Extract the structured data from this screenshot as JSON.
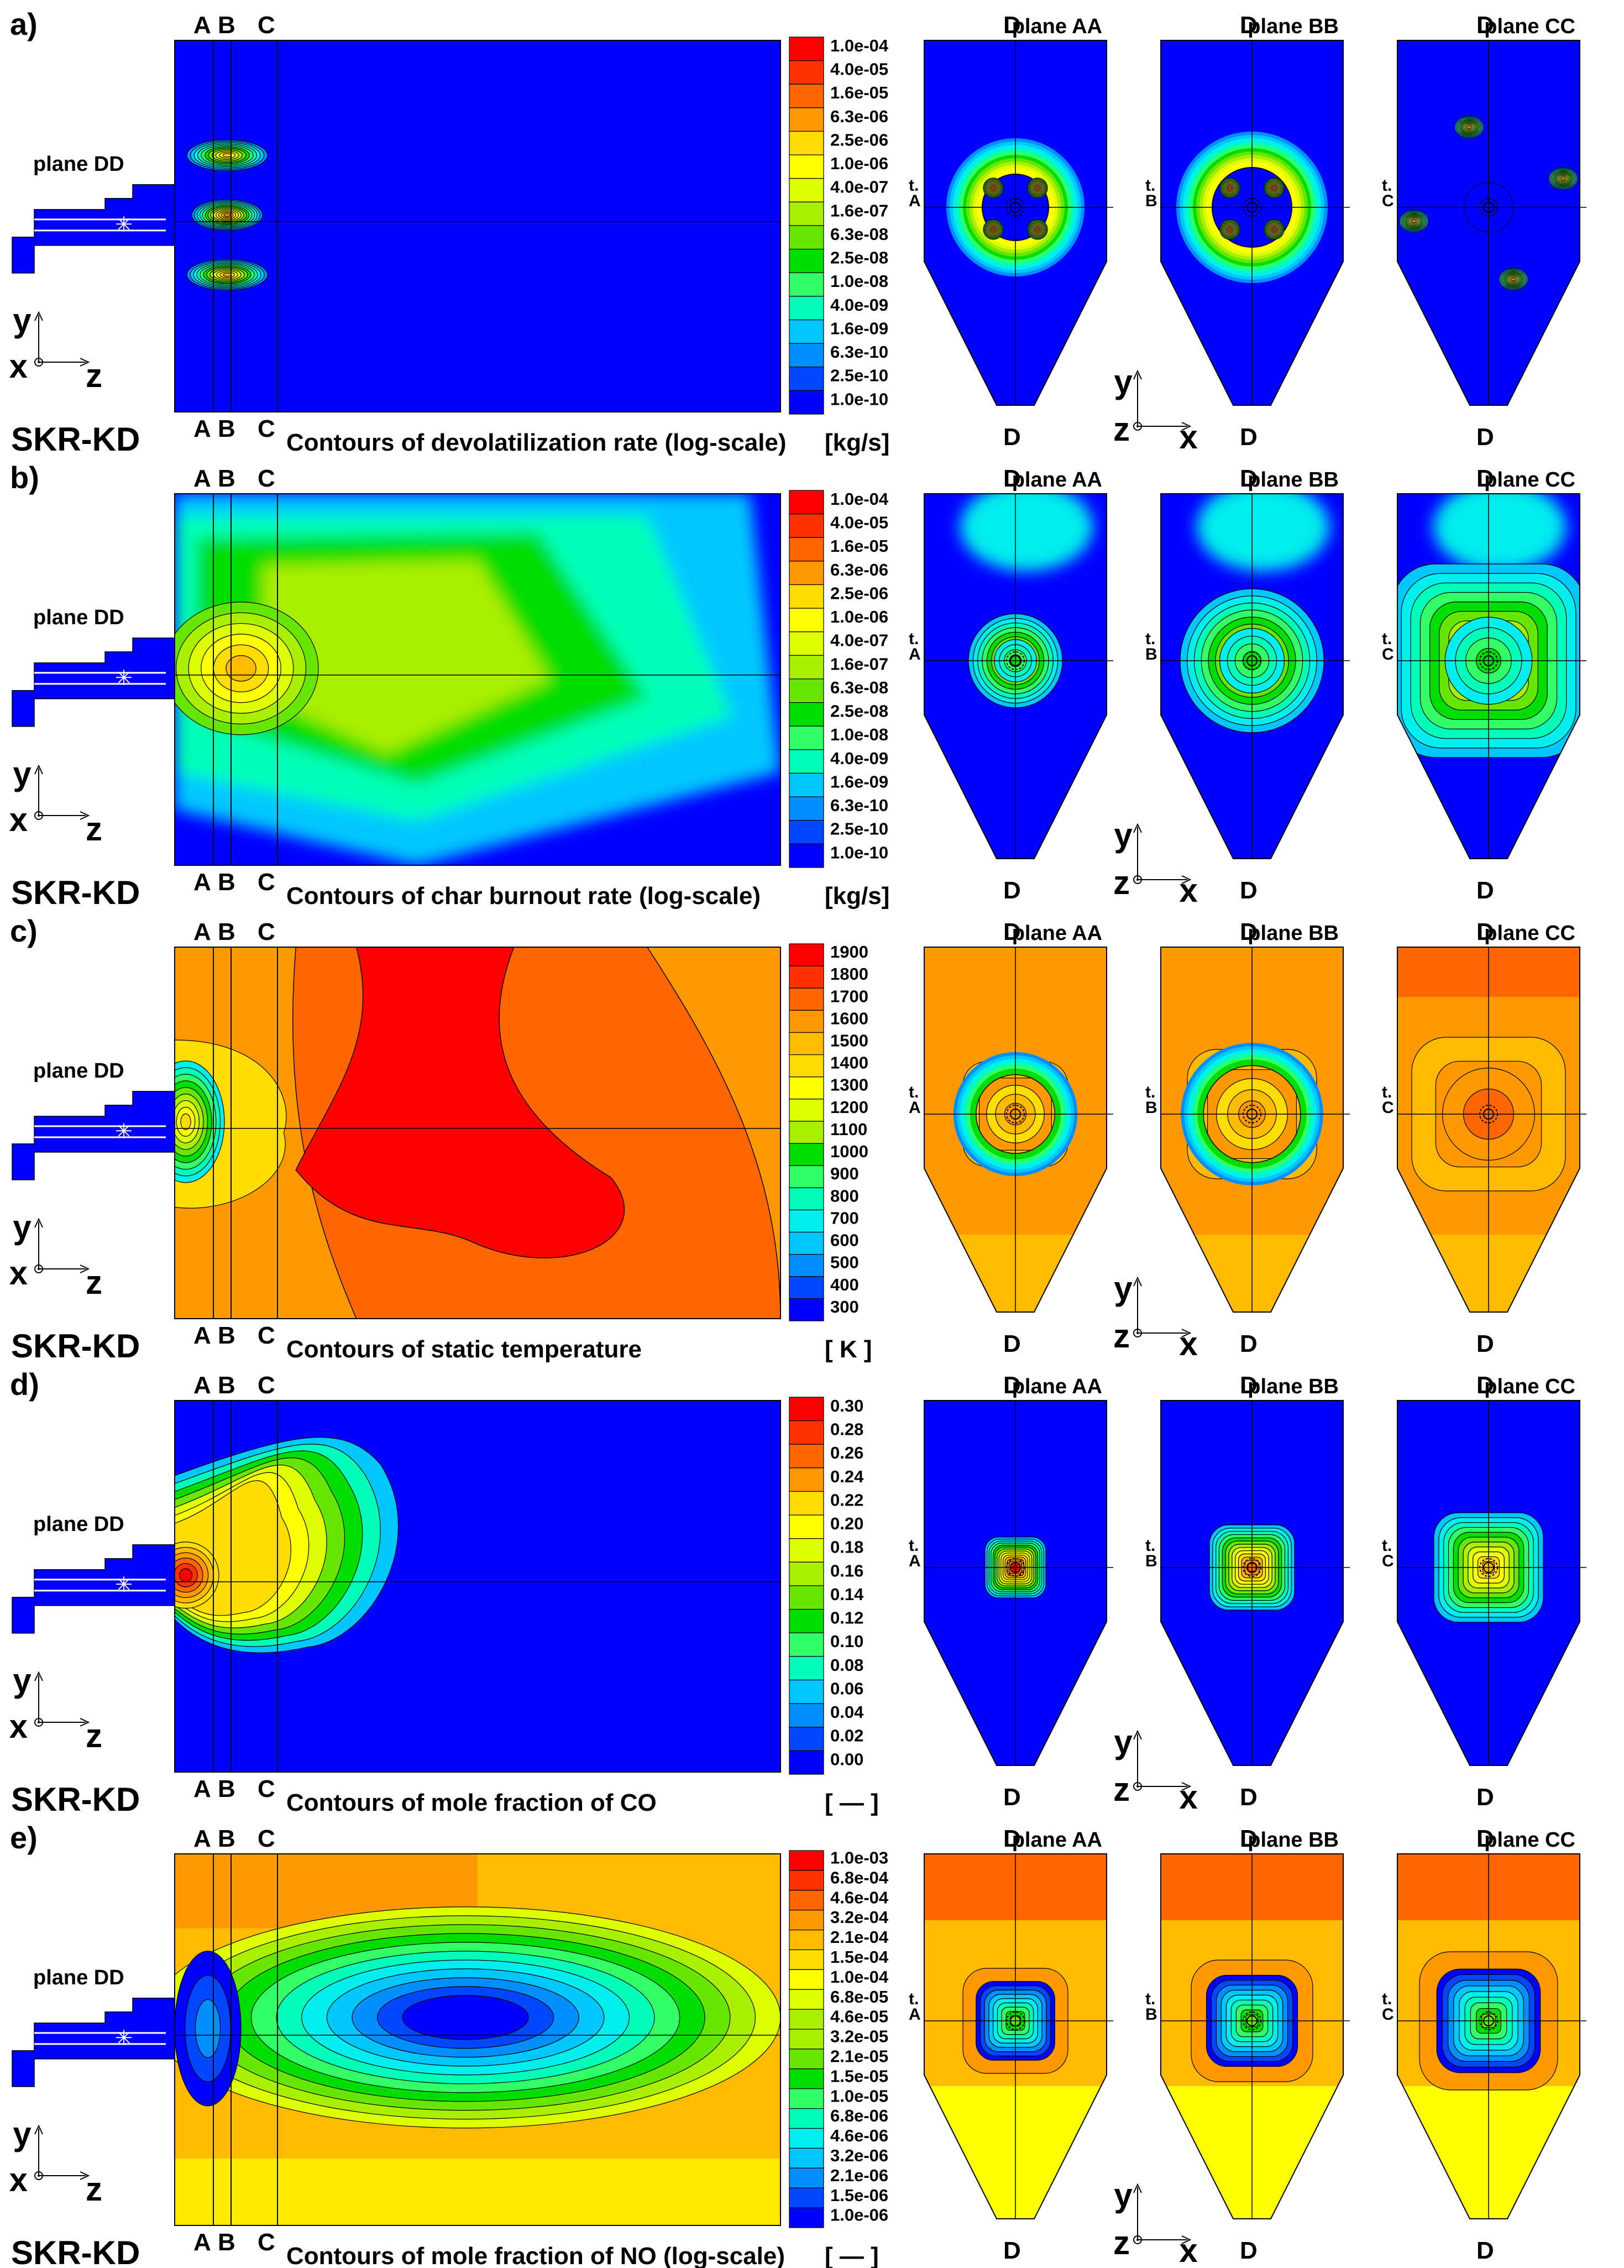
{
  "figure": {
    "model_name": "SKR-KD",
    "burner_plane_label": "plane DD",
    "side_section_marks": [
      "A",
      "B",
      "C"
    ],
    "slice_top_mark": "D",
    "slice_bottom_mark": "D",
    "slice_plane_labels": [
      "plane AA",
      "plane BB",
      "plane CC"
    ],
    "slice_line_marks": [
      "A",
      "B",
      "C"
    ],
    "slice_line_prefix": "t.",
    "axes_side": {
      "up": "y",
      "out": "x",
      "right": "z"
    },
    "axes_slice": {
      "up": "y",
      "out": "z",
      "right": "x"
    }
  },
  "colors": {
    "scale": [
      "#0000ff",
      "#0047ff",
      "#008fff",
      "#00c8ff",
      "#00eeee",
      "#00ffb8",
      "#33ff66",
      "#00dd00",
      "#66e600",
      "#aaee00",
      "#ddff00",
      "#ffff00",
      "#ffdd00",
      "#ffbb00",
      "#ff9900",
      "#ff6600",
      "#ff3300",
      "#ff0000"
    ]
  },
  "panels": [
    {
      "letter": "a)",
      "title": "Contours of devolatilization rate (log-scale)",
      "unit": "[kg/s]",
      "legend": [
        "1.0e-04",
        "4.0e-05",
        "1.6e-05",
        "6.3e-06",
        "2.5e-06",
        "1.0e-06",
        "4.0e-07",
        "1.6e-07",
        "6.3e-08",
        "2.5e-08",
        "1.0e-08",
        "4.0e-09",
        "1.6e-09",
        "6.3e-10",
        "2.5e-10",
        "1.0e-10"
      ],
      "show_axes_on_slice": 0
    },
    {
      "letter": "b)",
      "title": "Contours of char burnout rate (log-scale)",
      "unit": "[kg/s]",
      "legend": [
        "1.0e-04",
        "4.0e-05",
        "1.6e-05",
        "6.3e-06",
        "2.5e-06",
        "1.0e-06",
        "4.0e-07",
        "1.6e-07",
        "6.3e-08",
        "2.5e-08",
        "1.0e-08",
        "4.0e-09",
        "1.6e-09",
        "6.3e-10",
        "2.5e-10",
        "1.0e-10"
      ],
      "show_axes_on_slice": 1
    },
    {
      "letter": "c)",
      "title": "Contours of static temperature",
      "unit": "[  K  ]",
      "legend": [
        "1900",
        "1800",
        "1700",
        "1600",
        "1500",
        "1400",
        "1300",
        "1200",
        "1100",
        "1000",
        "900",
        "800",
        "700",
        "600",
        "500",
        "400",
        "300"
      ],
      "show_axes_on_slice": 1
    },
    {
      "letter": "d)",
      "title": "Contours of mole fraction of CO",
      "unit": "[  —  ]",
      "legend": [
        "0.30",
        "0.28",
        "0.26",
        "0.24",
        "0.22",
        "0.20",
        "0.18",
        "0.16",
        "0.14",
        "0.12",
        "0.10",
        "0.08",
        "0.06",
        "0.04",
        "0.02",
        "0.00"
      ],
      "show_axes_on_slice": 1
    },
    {
      "letter": "e)",
      "title": "Contours of mole fraction of NO (log-scale)",
      "unit": "[  —  ]",
      "legend": [
        "1.0e-03",
        "6.8e-04",
        "4.6e-04",
        "3.2e-04",
        "2.1e-04",
        "1.5e-04",
        "1.0e-04",
        "6.8e-05",
        "4.6e-05",
        "3.2e-05",
        "2.1e-05",
        "1.5e-05",
        "1.0e-05",
        "6.8e-06",
        "4.6e-06",
        "3.2e-06",
        "2.1e-06",
        "1.5e-06",
        "1.0e-06"
      ],
      "show_axes_on_slice": 1
    }
  ]
}
